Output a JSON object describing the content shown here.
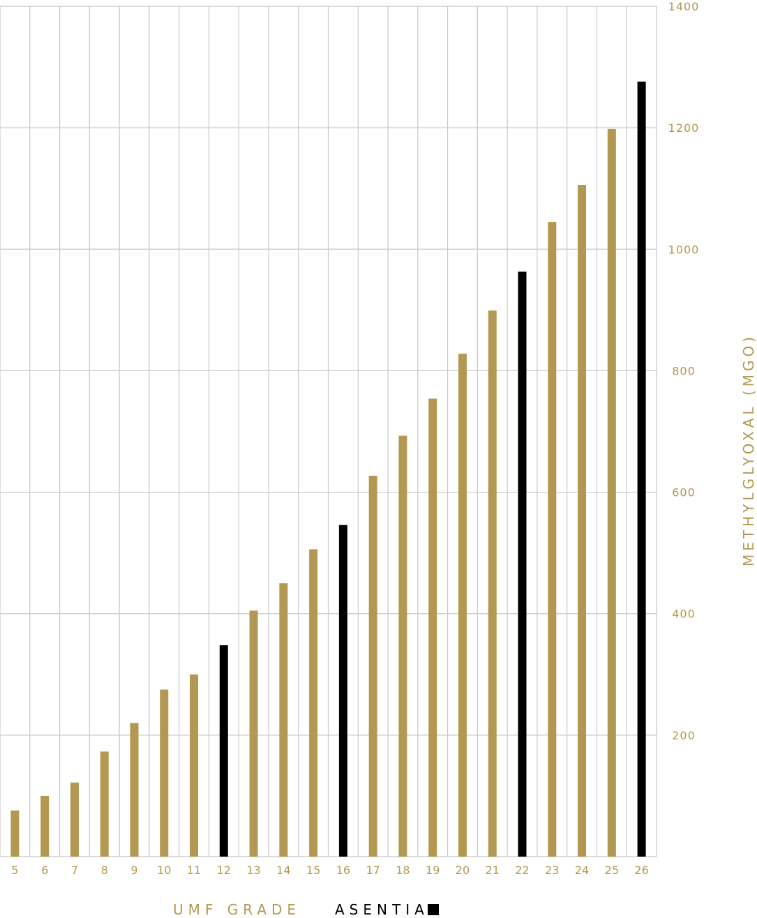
{
  "chart_data": {
    "type": "bar",
    "title": "",
    "xlabel": "UMF GRADE",
    "ylabel": "METHYLGLYOXAL (MGO)",
    "ylim": [
      0,
      1400
    ],
    "yticks": [
      200,
      400,
      600,
      800,
      1000,
      1200,
      1400
    ],
    "y_axis_side": "right",
    "grid": true,
    "categories": [
      "5",
      "6",
      "7",
      "8",
      "9",
      "10",
      "11",
      "12",
      "13",
      "14",
      "15",
      "16",
      "17",
      "18",
      "19",
      "20",
      "21",
      "22",
      "23",
      "24",
      "25",
      "26"
    ],
    "values": [
      76,
      100,
      122,
      173,
      220,
      275,
      300,
      348,
      405,
      450,
      506,
      546,
      627,
      693,
      754,
      828,
      899,
      963,
      1045,
      1106,
      1198,
      1276
    ],
    "highlighted": [
      "12",
      "16",
      "22",
      "26"
    ],
    "legend": {
      "label": "ASENTIA",
      "placement": "bottom"
    },
    "colors": {
      "default": "#b39851",
      "highlight": "#000000",
      "grid": "#c8c8c8"
    }
  }
}
